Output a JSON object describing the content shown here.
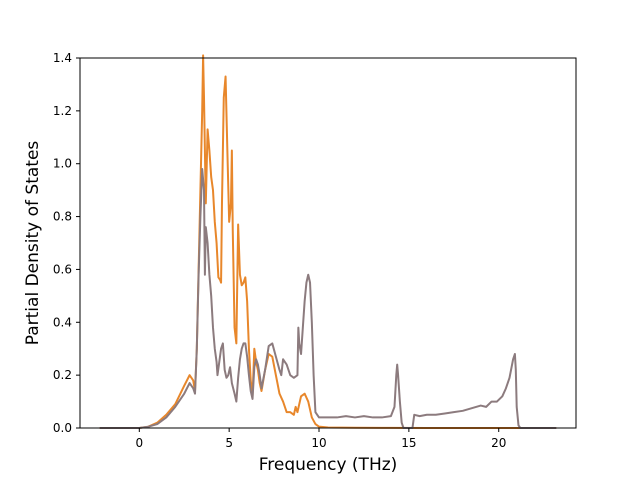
{
  "chart_data": {
    "type": "line",
    "title": "",
    "xlabel": "Frequency (THz)",
    "ylabel": "Partial Density of States",
    "xlim": [
      -3.3,
      24.3
    ],
    "ylim": [
      0.0,
      1.4
    ],
    "xticks": [
      0,
      5,
      10,
      15,
      20
    ],
    "yticks": [
      0.0,
      0.2,
      0.4,
      0.6,
      0.8,
      1.0,
      1.2,
      1.4
    ],
    "ytick_labels": [
      "0.0",
      "0.2",
      "0.4",
      "0.6",
      "0.8",
      "1.0",
      "1.2",
      "1.4"
    ],
    "xtick_labels": [
      "0",
      "5",
      "10",
      "15",
      "20"
    ],
    "grid": false,
    "legend": "none",
    "series": [
      {
        "color": "#e8872b",
        "points": [
          [
            -2.2,
            0
          ],
          [
            0,
            0
          ],
          [
            0.5,
            0.005
          ],
          [
            1.0,
            0.02
          ],
          [
            1.5,
            0.05
          ],
          [
            2.0,
            0.09
          ],
          [
            2.5,
            0.16
          ],
          [
            2.8,
            0.2
          ],
          [
            3.0,
            0.18
          ],
          [
            3.1,
            0.14
          ],
          [
            3.2,
            0.3
          ],
          [
            3.3,
            0.6
          ],
          [
            3.4,
            0.9
          ],
          [
            3.5,
            1.2
          ],
          [
            3.55,
            1.41
          ],
          [
            3.6,
            1.25
          ],
          [
            3.7,
            0.85
          ],
          [
            3.8,
            1.13
          ],
          [
            3.9,
            1.05
          ],
          [
            4.0,
            0.95
          ],
          [
            4.1,
            0.9
          ],
          [
            4.2,
            0.78
          ],
          [
            4.3,
            0.7
          ],
          [
            4.4,
            0.57
          ],
          [
            4.5,
            0.56
          ],
          [
            4.55,
            0.55
          ],
          [
            4.6,
            0.85
          ],
          [
            4.7,
            1.25
          ],
          [
            4.8,
            1.33
          ],
          [
            4.9,
            1.05
          ],
          [
            5.0,
            0.78
          ],
          [
            5.1,
            0.85
          ],
          [
            5.15,
            1.05
          ],
          [
            5.2,
            0.75
          ],
          [
            5.3,
            0.38
          ],
          [
            5.4,
            0.32
          ],
          [
            5.5,
            0.77
          ],
          [
            5.6,
            0.58
          ],
          [
            5.7,
            0.54
          ],
          [
            5.8,
            0.55
          ],
          [
            5.9,
            0.57
          ],
          [
            6.0,
            0.48
          ],
          [
            6.1,
            0.3
          ],
          [
            6.2,
            0.18
          ],
          [
            6.3,
            0.12
          ],
          [
            6.4,
            0.3
          ],
          [
            6.5,
            0.25
          ],
          [
            6.6,
            0.22
          ],
          [
            6.7,
            0.17
          ],
          [
            6.8,
            0.14
          ],
          [
            7.0,
            0.22
          ],
          [
            7.2,
            0.28
          ],
          [
            7.4,
            0.27
          ],
          [
            7.6,
            0.2
          ],
          [
            7.8,
            0.13
          ],
          [
            8.0,
            0.1
          ],
          [
            8.2,
            0.06
          ],
          [
            8.4,
            0.06
          ],
          [
            8.6,
            0.05
          ],
          [
            8.7,
            0.08
          ],
          [
            8.8,
            0.06
          ],
          [
            8.9,
            0.09
          ],
          [
            9.0,
            0.12
          ],
          [
            9.2,
            0.13
          ],
          [
            9.4,
            0.1
          ],
          [
            9.6,
            0.04
          ],
          [
            9.8,
            0.015
          ],
          [
            10.0,
            0.005
          ],
          [
            10.5,
            0.002
          ],
          [
            12,
            0.001
          ],
          [
            14,
            0.0005
          ],
          [
            16,
            0
          ],
          [
            18,
            0
          ],
          [
            20,
            0
          ],
          [
            21.0,
            0.0
          ],
          [
            23.2,
            0
          ]
        ]
      },
      {
        "color": "#8c7b7e",
        "points": [
          [
            -2.2,
            0
          ],
          [
            0,
            0
          ],
          [
            0.5,
            0.005
          ],
          [
            1.0,
            0.015
          ],
          [
            1.5,
            0.04
          ],
          [
            2.0,
            0.08
          ],
          [
            2.5,
            0.13
          ],
          [
            2.8,
            0.17
          ],
          [
            3.0,
            0.15
          ],
          [
            3.1,
            0.13
          ],
          [
            3.2,
            0.3
          ],
          [
            3.3,
            0.58
          ],
          [
            3.4,
            0.8
          ],
          [
            3.5,
            0.98
          ],
          [
            3.6,
            0.9
          ],
          [
            3.65,
            0.58
          ],
          [
            3.7,
            0.76
          ],
          [
            3.8,
            0.7
          ],
          [
            3.9,
            0.58
          ],
          [
            4.0,
            0.5
          ],
          [
            4.1,
            0.38
          ],
          [
            4.2,
            0.3
          ],
          [
            4.3,
            0.25
          ],
          [
            4.35,
            0.2
          ],
          [
            4.45,
            0.25
          ],
          [
            4.55,
            0.3
          ],
          [
            4.65,
            0.32
          ],
          [
            4.75,
            0.22
          ],
          [
            4.85,
            0.19
          ],
          [
            4.95,
            0.2
          ],
          [
            5.05,
            0.23
          ],
          [
            5.15,
            0.17
          ],
          [
            5.3,
            0.13
          ],
          [
            5.4,
            0.1
          ],
          [
            5.5,
            0.19
          ],
          [
            5.6,
            0.26
          ],
          [
            5.7,
            0.3
          ],
          [
            5.8,
            0.32
          ],
          [
            5.9,
            0.32
          ],
          [
            6.0,
            0.27
          ],
          [
            6.1,
            0.2
          ],
          [
            6.2,
            0.14
          ],
          [
            6.3,
            0.11
          ],
          [
            6.4,
            0.23
          ],
          [
            6.5,
            0.26
          ],
          [
            6.6,
            0.24
          ],
          [
            6.7,
            0.2
          ],
          [
            6.8,
            0.15
          ],
          [
            7.0,
            0.22
          ],
          [
            7.2,
            0.31
          ],
          [
            7.4,
            0.32
          ],
          [
            7.6,
            0.27
          ],
          [
            7.8,
            0.22
          ],
          [
            7.9,
            0.2
          ],
          [
            8.0,
            0.26
          ],
          [
            8.2,
            0.24
          ],
          [
            8.4,
            0.2
          ],
          [
            8.6,
            0.19
          ],
          [
            8.8,
            0.2
          ],
          [
            8.85,
            0.38
          ],
          [
            8.9,
            0.32
          ],
          [
            9.0,
            0.28
          ],
          [
            9.1,
            0.38
          ],
          [
            9.2,
            0.48
          ],
          [
            9.3,
            0.55
          ],
          [
            9.4,
            0.58
          ],
          [
            9.5,
            0.55
          ],
          [
            9.6,
            0.4
          ],
          [
            9.7,
            0.2
          ],
          [
            9.8,
            0.06
          ],
          [
            10.0,
            0.04
          ],
          [
            10.5,
            0.04
          ],
          [
            11.0,
            0.04
          ],
          [
            11.5,
            0.045
          ],
          [
            12.0,
            0.04
          ],
          [
            12.5,
            0.045
          ],
          [
            13.0,
            0.04
          ],
          [
            13.5,
            0.04
          ],
          [
            14.0,
            0.045
          ],
          [
            14.2,
            0.08
          ],
          [
            14.3,
            0.2
          ],
          [
            14.35,
            0.24
          ],
          [
            14.4,
            0.2
          ],
          [
            14.5,
            0.1
          ],
          [
            14.6,
            0.02
          ],
          [
            14.7,
            0.0
          ],
          [
            15.0,
            0.0
          ],
          [
            15.2,
            0.0
          ],
          [
            15.3,
            0.05
          ],
          [
            15.6,
            0.045
          ],
          [
            16.0,
            0.05
          ],
          [
            16.5,
            0.05
          ],
          [
            17.0,
            0.055
          ],
          [
            17.5,
            0.06
          ],
          [
            18.0,
            0.065
          ],
          [
            18.5,
            0.075
          ],
          [
            19.0,
            0.085
          ],
          [
            19.3,
            0.08
          ],
          [
            19.6,
            0.1
          ],
          [
            19.9,
            0.1
          ],
          [
            20.2,
            0.12
          ],
          [
            20.4,
            0.15
          ],
          [
            20.6,
            0.19
          ],
          [
            20.8,
            0.26
          ],
          [
            20.9,
            0.28
          ],
          [
            20.95,
            0.22
          ],
          [
            21.0,
            0.08
          ],
          [
            21.1,
            0.01
          ],
          [
            21.2,
            0.0
          ],
          [
            23.2,
            0
          ]
        ]
      }
    ]
  }
}
